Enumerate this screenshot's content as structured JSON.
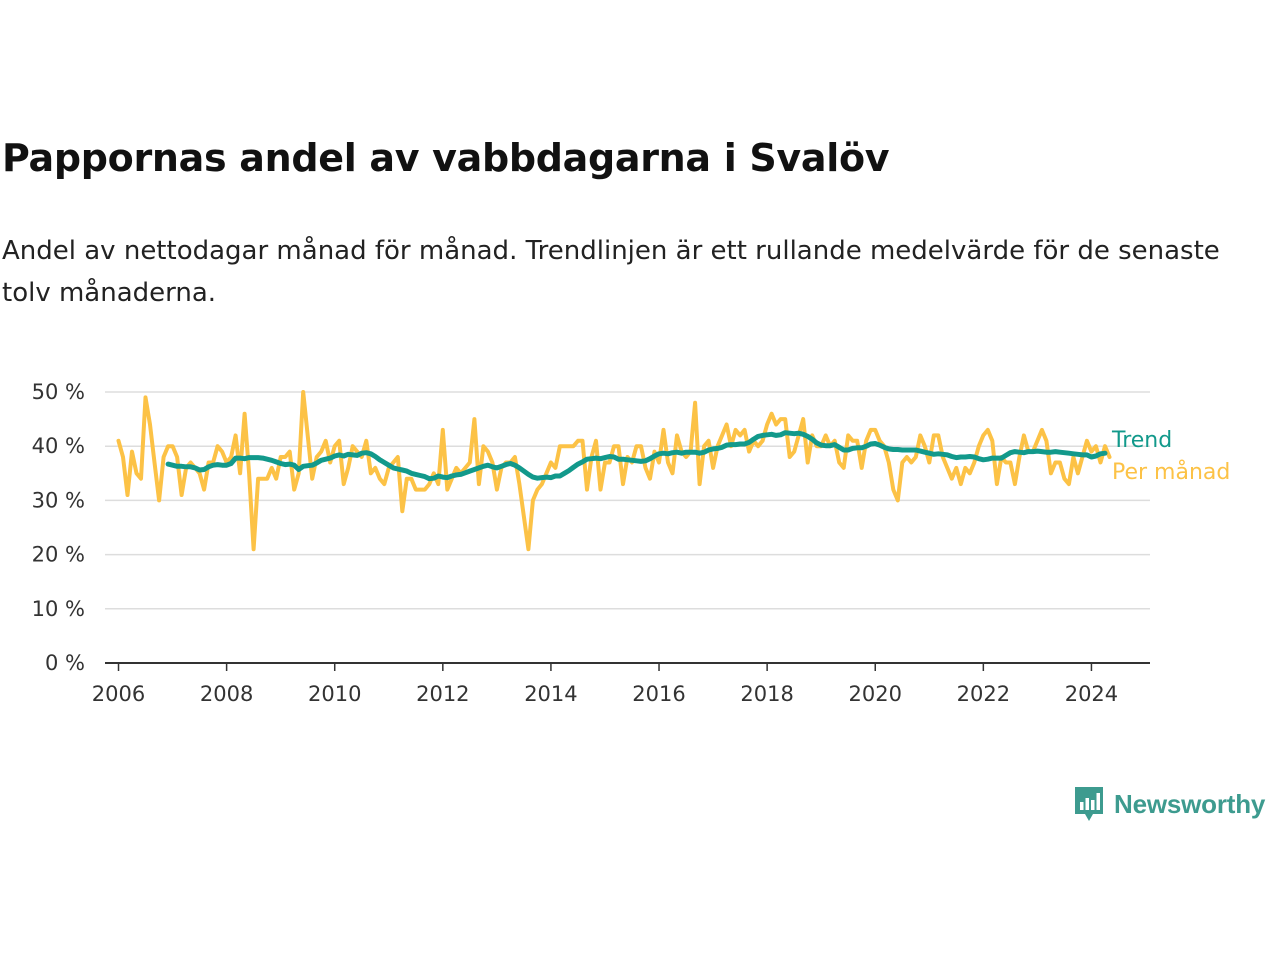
{
  "title": "Pappornas andel av vabbdagarna i Svalöv",
  "subtitle": "Andel av nettodagar månad för månad. Trendlinjen är ett rullande medelvärde för de senaste tolv månaderna.",
  "brand": {
    "name": "Newsworthy",
    "icon": "newsworthy-logo-icon",
    "color": "#3d9b8f"
  },
  "chart_data": {
    "type": "line",
    "x_unit": "month",
    "x_start": "2006-01",
    "xlim": [
      "2005-10",
      "2025-02"
    ],
    "ylim": [
      0,
      50
    ],
    "y_ticks": [
      0,
      10,
      20,
      30,
      40,
      50
    ],
    "y_tick_labels": [
      "0 %",
      "10 %",
      "20 %",
      "30 %",
      "40 %",
      "50 %"
    ],
    "x_ticks": [
      2006,
      2008,
      2010,
      2012,
      2014,
      2016,
      2018,
      2020,
      2022,
      2024
    ],
    "x_tick_labels": [
      "2006",
      "2008",
      "2010",
      "2012",
      "2014",
      "2016",
      "2018",
      "2020",
      "2022",
      "2024"
    ],
    "grid": true,
    "series": [
      {
        "name": "Per månad",
        "color": "#fcc246",
        "start": "2006-01",
        "values": [
          41,
          38,
          31,
          39,
          35,
          34,
          49,
          44,
          37,
          30,
          38,
          40,
          40,
          38,
          31,
          36,
          37,
          36,
          35,
          32,
          37,
          37,
          40,
          39,
          37,
          38,
          42,
          35,
          46,
          35,
          21,
          34,
          34,
          34,
          36,
          34,
          38,
          38,
          39,
          32,
          35,
          50,
          42,
          34,
          38,
          39,
          41,
          37,
          40,
          41,
          33,
          36,
          40,
          39,
          38,
          41,
          35,
          36,
          34,
          33,
          36,
          37,
          38,
          28,
          34,
          34,
          32,
          32,
          32,
          33,
          35,
          33,
          43,
          32,
          34,
          36,
          35,
          36,
          37,
          45,
          33,
          40,
          39,
          37,
          32,
          36,
          37,
          37,
          38,
          33,
          27,
          21,
          30,
          32,
          33,
          35,
          37,
          36,
          40,
          40,
          40,
          40,
          41,
          41,
          32,
          38,
          41,
          32,
          37,
          37,
          40,
          40,
          33,
          38,
          37,
          40,
          40,
          36,
          34,
          39,
          37,
          43,
          37,
          35,
          42,
          39,
          38,
          39,
          48,
          33,
          40,
          41,
          36,
          40,
          42,
          44,
          40,
          43,
          42,
          43,
          39,
          41,
          40,
          41,
          44,
          46,
          44,
          45,
          45,
          38,
          39,
          42,
          45,
          37,
          42,
          40,
          40,
          42,
          40,
          41,
          37,
          36,
          42,
          41,
          41,
          36,
          41,
          43,
          43,
          41,
          40,
          37,
          32,
          30,
          37,
          38,
          37,
          38,
          42,
          40,
          37,
          42,
          42,
          38,
          36,
          34,
          36,
          33,
          36,
          35,
          37,
          40,
          42,
          43,
          41,
          33,
          38,
          37,
          37,
          33,
          38,
          42,
          39,
          39,
          41,
          43,
          41,
          35,
          37,
          37,
          34,
          33,
          38,
          35,
          38,
          41,
          39,
          40,
          37,
          40,
          38
        ]
      },
      {
        "name": "Trend",
        "color": "#12998b",
        "start": "2006-12",
        "values": [
          36.7,
          36.5,
          36.3,
          36.3,
          36.2,
          36.2,
          36.0,
          35.6,
          35.7,
          36.2,
          36.5,
          36.6,
          36.5,
          36.5,
          36.8,
          37.8,
          37.8,
          37.7,
          37.9,
          37.9,
          37.9,
          37.8,
          37.6,
          37.4,
          37.1,
          36.8,
          36.6,
          36.7,
          36.5,
          35.7,
          36.3,
          36.4,
          36.5,
          36.9,
          37.4,
          37.6,
          37.8,
          38.2,
          38.4,
          38.2,
          38.5,
          38.4,
          38.3,
          38.7,
          38.8,
          38.6,
          38.1,
          37.5,
          37.0,
          36.5,
          36.0,
          35.8,
          35.6,
          35.4,
          35.0,
          34.8,
          34.6,
          34.4,
          34.0,
          34.1,
          34.5,
          34.3,
          34.2,
          34.5,
          34.7,
          34.8,
          35.1,
          35.4,
          35.7,
          36.0,
          36.3,
          36.5,
          36.2,
          36.0,
          36.3,
          36.6,
          36.8,
          36.5,
          36.0,
          35.4,
          34.8,
          34.3,
          34.1,
          34.2,
          34.3,
          34.2,
          34.5,
          34.5,
          35.0,
          35.5,
          36.1,
          36.7,
          37.1,
          37.6,
          37.7,
          37.8,
          37.7,
          37.9,
          38.1,
          38.0,
          37.6,
          37.6,
          37.5,
          37.4,
          37.3,
          37.2,
          37.3,
          37.7,
          38.2,
          38.6,
          38.7,
          38.6,
          38.8,
          38.9,
          38.7,
          38.9,
          38.9,
          38.9,
          38.7,
          38.9,
          39.3,
          39.5,
          39.6,
          39.8,
          40.2,
          40.3,
          40.3,
          40.4,
          40.4,
          40.7,
          41.3,
          41.8,
          42.0,
          42.1,
          42.2,
          42.0,
          42.1,
          42.5,
          42.4,
          42.3,
          42.4,
          42.2,
          41.8,
          41.3,
          40.6,
          40.2,
          40.1,
          40.1,
          40.3,
          39.8,
          39.3,
          39.3,
          39.6,
          39.7,
          39.7,
          40.0,
          40.4,
          40.5,
          40.2,
          39.8,
          39.5,
          39.4,
          39.4,
          39.3,
          39.3,
          39.3,
          39.3,
          39.1,
          38.9,
          38.7,
          38.5,
          38.6,
          38.5,
          38.4,
          38.1,
          37.9,
          38.0,
          38.0,
          38.1,
          38.0,
          37.7,
          37.5,
          37.6,
          37.8,
          37.8,
          37.8,
          38.3,
          38.8,
          39.0,
          38.9,
          38.8,
          39.0,
          39.0,
          39.1,
          39.0,
          38.9,
          38.9,
          39.0,
          38.9,
          38.8,
          38.7,
          38.6,
          38.5,
          38.4,
          38.4,
          38.0,
          38.2,
          38.6,
          38.7
        ]
      }
    ]
  }
}
